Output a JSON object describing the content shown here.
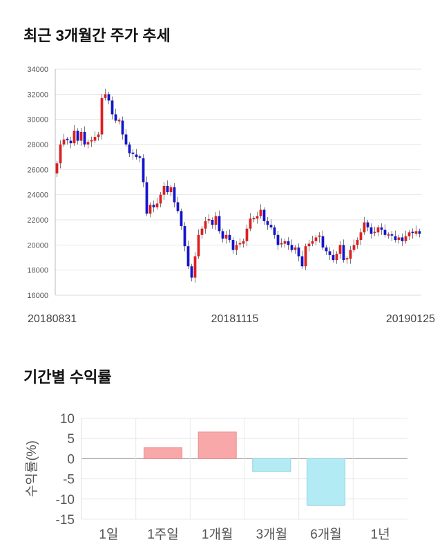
{
  "sections": {
    "price_title": "최근 3개월간 주가 추세",
    "return_title": "기간별 수익률"
  },
  "chart_data": [
    {
      "type": "candlestick",
      "title": "최근 3개월간 주가 추세",
      "ylim": [
        16000,
        34000
      ],
      "y_ticks": [
        16000,
        18000,
        20000,
        22000,
        24000,
        26000,
        28000,
        30000,
        32000,
        34000
      ],
      "x_labels": [
        "20180831",
        "20181115",
        "20190125"
      ],
      "grid": true,
      "colors": {
        "up": "#dd1f1f",
        "down": "#1414cc",
        "grid": "#e6e6e6"
      },
      "closes": [
        26500,
        28000,
        28400,
        28300,
        28100,
        29100,
        28300,
        29000,
        28000,
        28200,
        28300,
        28600,
        28800,
        31700,
        32000,
        31500,
        30400,
        29900,
        29900,
        28800,
        28000,
        27300,
        27200,
        27000,
        26900,
        25000,
        22500,
        23200,
        23000,
        23300,
        24000,
        24700,
        24200,
        24600,
        23400,
        22700,
        21500,
        19900,
        18300,
        17400,
        19100,
        20800,
        21300,
        21900,
        22000,
        21600,
        22300,
        21100,
        20500,
        20800,
        20400,
        19600,
        20000,
        20100,
        20300,
        21300,
        22100,
        22100,
        22300,
        22800,
        21900,
        21600,
        21400,
        20800,
        20000,
        20100,
        20300,
        20000,
        19600,
        19800,
        19100,
        18300,
        19900,
        20100,
        20300,
        20600,
        20700,
        19800,
        19500,
        19200,
        18800,
        19300,
        20000,
        18800,
        18900,
        19600,
        20000,
        20400,
        21000,
        21800,
        21400,
        20900,
        21000,
        21400,
        21200,
        20800,
        20800,
        20700,
        20400,
        20600,
        20300,
        20700,
        21000,
        20900,
        21100,
        20900
      ]
    },
    {
      "type": "bar",
      "title": "기간별 수익률",
      "categories": [
        "1일",
        "1주일",
        "1개월",
        "3개월",
        "6개월",
        "1년"
      ],
      "values": [
        0,
        2.7,
        6.6,
        -3.2,
        -11.6,
        0
      ],
      "ylabel": "수익률(%)",
      "ylim": [
        -15,
        10
      ],
      "y_ticks": [
        10,
        5,
        0,
        -5,
        -10,
        -15
      ],
      "colors": {
        "positive_fill": "#f8a8a8",
        "positive_stroke": "#e89090",
        "negative_fill": "#b2ebf4",
        "negative_stroke": "#8fd3e2"
      },
      "grid": true
    }
  ]
}
